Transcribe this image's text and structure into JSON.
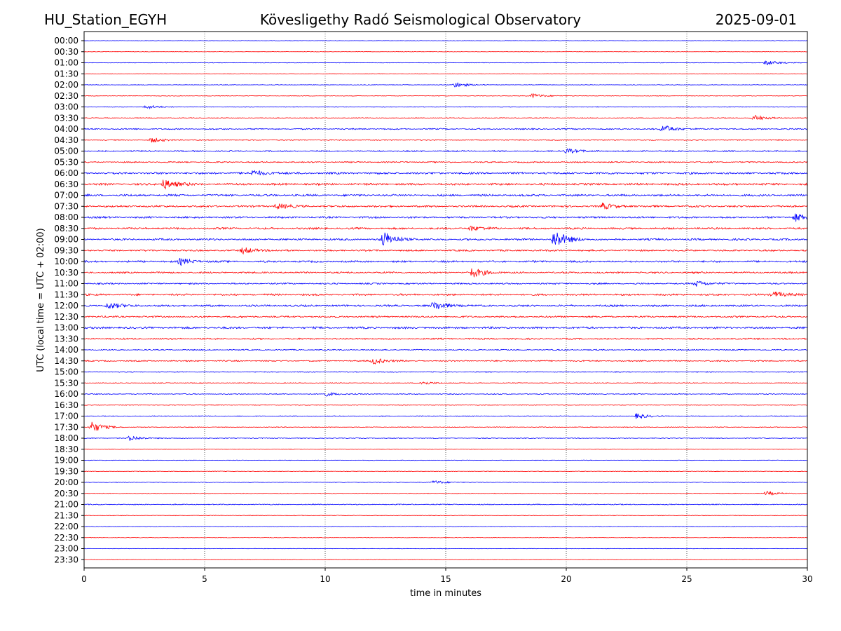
{
  "header": {
    "station": "HU_Station_EGYH",
    "title": "Kövesligethy Radó Seismological Observatory",
    "date": "2025-09-01"
  },
  "chart_data": {
    "type": "line",
    "title": "Kövesligethy Radó Seismological Observatory",
    "xlabel": "time in minutes",
    "ylabel": "UTC (local time = UTC + 02:00)",
    "xlim": [
      0,
      30
    ],
    "x_ticks": [
      0,
      5,
      10,
      15,
      20,
      25,
      30
    ],
    "grid": "vertical dotted lines at x ticks",
    "colors": {
      "even_rows": "#0000ff",
      "odd_rows": "#ff0000",
      "frame": "#000000"
    },
    "rows": [
      {
        "label": "00:00",
        "color": "#0000ff",
        "amplitude": 0.12,
        "events": []
      },
      {
        "label": "00:30",
        "color": "#ff0000",
        "amplitude": 0.12,
        "events": []
      },
      {
        "label": "01:00",
        "color": "#0000ff",
        "amplitude": 0.14,
        "events": [
          {
            "minute": 28.3,
            "strength": 0.8
          }
        ]
      },
      {
        "label": "01:30",
        "color": "#ff0000",
        "amplitude": 0.12,
        "events": []
      },
      {
        "label": "02:00",
        "color": "#0000ff",
        "amplitude": 0.14,
        "events": [
          {
            "minute": 15.4,
            "strength": 0.9
          }
        ]
      },
      {
        "label": "02:30",
        "color": "#ff0000",
        "amplitude": 0.16,
        "events": [
          {
            "minute": 18.6,
            "strength": 0.7
          }
        ]
      },
      {
        "label": "03:00",
        "color": "#0000ff",
        "amplitude": 0.18,
        "events": [
          {
            "minute": 2.6,
            "strength": 0.6
          }
        ]
      },
      {
        "label": "03:30",
        "color": "#ff0000",
        "amplitude": 0.2,
        "events": [
          {
            "minute": 27.8,
            "strength": 0.9
          }
        ]
      },
      {
        "label": "04:00",
        "color": "#0000ff",
        "amplitude": 0.35,
        "events": [
          {
            "minute": 24.0,
            "strength": 1.2
          }
        ]
      },
      {
        "label": "04:30",
        "color": "#ff0000",
        "amplitude": 0.25,
        "events": [
          {
            "minute": 2.8,
            "strength": 0.8
          }
        ]
      },
      {
        "label": "05:00",
        "color": "#0000ff",
        "amplitude": 0.35,
        "events": [
          {
            "minute": 20.0,
            "strength": 0.8
          }
        ]
      },
      {
        "label": "05:30",
        "color": "#ff0000",
        "amplitude": 0.35,
        "events": []
      },
      {
        "label": "06:00",
        "color": "#0000ff",
        "amplitude": 0.55,
        "events": [
          {
            "minute": 7.0,
            "strength": 0.9
          }
        ]
      },
      {
        "label": "06:30",
        "color": "#ff0000",
        "amplitude": 0.55,
        "events": [
          {
            "minute": 3.3,
            "strength": 1.6
          }
        ]
      },
      {
        "label": "07:00",
        "color": "#0000ff",
        "amplitude": 0.55,
        "events": []
      },
      {
        "label": "07:30",
        "color": "#ff0000",
        "amplitude": 0.5,
        "events": [
          {
            "minute": 8.0,
            "strength": 0.9
          },
          {
            "minute": 21.5,
            "strength": 0.9
          }
        ]
      },
      {
        "label": "08:00",
        "color": "#0000ff",
        "amplitude": 0.5,
        "events": [
          {
            "minute": 29.5,
            "strength": 1.3
          }
        ]
      },
      {
        "label": "08:30",
        "color": "#ff0000",
        "amplitude": 0.5,
        "events": [
          {
            "minute": 16.0,
            "strength": 0.8
          }
        ]
      },
      {
        "label": "09:00",
        "color": "#0000ff",
        "amplitude": 0.5,
        "events": [
          {
            "minute": 12.4,
            "strength": 2.6
          },
          {
            "minute": 19.5,
            "strength": 3.0
          }
        ]
      },
      {
        "label": "09:30",
        "color": "#ff0000",
        "amplitude": 0.45,
        "events": [
          {
            "minute": 6.6,
            "strength": 1.0
          }
        ]
      },
      {
        "label": "10:00",
        "color": "#0000ff",
        "amplitude": 0.5,
        "events": [
          {
            "minute": 4.0,
            "strength": 1.0
          }
        ]
      },
      {
        "label": "10:30",
        "color": "#ff0000",
        "amplitude": 0.45,
        "events": [
          {
            "minute": 16.1,
            "strength": 1.6
          }
        ]
      },
      {
        "label": "11:00",
        "color": "#0000ff",
        "amplitude": 0.4,
        "events": [
          {
            "minute": 25.4,
            "strength": 0.9
          }
        ]
      },
      {
        "label": "11:30",
        "color": "#ff0000",
        "amplitude": 0.5,
        "events": [
          {
            "minute": 28.6,
            "strength": 1.0
          }
        ]
      },
      {
        "label": "12:00",
        "color": "#0000ff",
        "amplitude": 0.5,
        "events": [
          {
            "minute": 1.0,
            "strength": 1.0
          },
          {
            "minute": 14.5,
            "strength": 1.4
          }
        ]
      },
      {
        "label": "12:30",
        "color": "#ff0000",
        "amplitude": 0.45,
        "events": []
      },
      {
        "label": "13:00",
        "color": "#0000ff",
        "amplitude": 0.55,
        "events": []
      },
      {
        "label": "13:30",
        "color": "#ff0000",
        "amplitude": 0.4,
        "events": []
      },
      {
        "label": "14:00",
        "color": "#0000ff",
        "amplitude": 0.3,
        "events": []
      },
      {
        "label": "14:30",
        "color": "#ff0000",
        "amplitude": 0.35,
        "events": [
          {
            "minute": 12.0,
            "strength": 1.0
          }
        ]
      },
      {
        "label": "15:00",
        "color": "#0000ff",
        "amplitude": 0.25,
        "events": []
      },
      {
        "label": "15:30",
        "color": "#ff0000",
        "amplitude": 0.2,
        "events": [
          {
            "minute": 14.0,
            "strength": 0.6
          }
        ]
      },
      {
        "label": "16:00",
        "color": "#0000ff",
        "amplitude": 0.25,
        "events": [
          {
            "minute": 10.0,
            "strength": 0.6
          }
        ]
      },
      {
        "label": "16:30",
        "color": "#ff0000",
        "amplitude": 0.18,
        "events": []
      },
      {
        "label": "17:00",
        "color": "#0000ff",
        "amplitude": 0.22,
        "events": [
          {
            "minute": 22.9,
            "strength": 0.8
          }
        ]
      },
      {
        "label": "17:30",
        "color": "#ff0000",
        "amplitude": 0.2,
        "events": [
          {
            "minute": 0.3,
            "strength": 1.8
          }
        ]
      },
      {
        "label": "18:00",
        "color": "#0000ff",
        "amplitude": 0.22,
        "events": [
          {
            "minute": 1.9,
            "strength": 0.8
          }
        ]
      },
      {
        "label": "18:30",
        "color": "#ff0000",
        "amplitude": 0.15,
        "events": []
      },
      {
        "label": "19:00",
        "color": "#0000ff",
        "amplitude": 0.15,
        "events": []
      },
      {
        "label": "19:30",
        "color": "#ff0000",
        "amplitude": 0.14,
        "events": []
      },
      {
        "label": "20:00",
        "color": "#0000ff",
        "amplitude": 0.16,
        "events": [
          {
            "minute": 14.5,
            "strength": 0.6
          }
        ]
      },
      {
        "label": "20:30",
        "color": "#ff0000",
        "amplitude": 0.16,
        "events": [
          {
            "minute": 28.3,
            "strength": 0.6
          }
        ]
      },
      {
        "label": "21:00",
        "color": "#0000ff",
        "amplitude": 0.25,
        "events": []
      },
      {
        "label": "21:30",
        "color": "#ff0000",
        "amplitude": 0.15,
        "events": []
      },
      {
        "label": "22:00",
        "color": "#0000ff",
        "amplitude": 0.16,
        "events": []
      },
      {
        "label": "22:30",
        "color": "#ff0000",
        "amplitude": 0.14,
        "events": []
      },
      {
        "label": "23:00",
        "color": "#0000ff",
        "amplitude": 0.12,
        "events": []
      },
      {
        "label": "23:30",
        "color": "#ff0000",
        "amplitude": 0.12,
        "events": []
      }
    ]
  }
}
